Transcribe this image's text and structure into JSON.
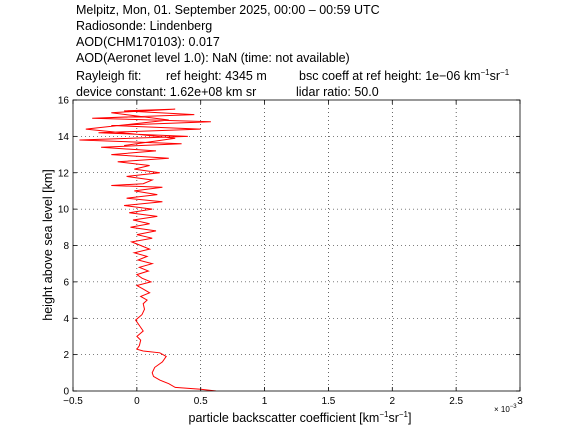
{
  "header": {
    "line1": "Melpitz, Mon, 01. September 2025, 00:00 – 00:59 UTC",
    "line2": "Radiosonde: Lindenberg",
    "line3": "AOD(CHM170103): 0.017",
    "line4": "AOD(Aeronet level 1.0): NaN   (time: not available)",
    "line5a": "Rayleigh fit:",
    "line5b": "ref height: 4345 m",
    "line5c_pre": "bsc coeff at ref height: 1e−06 km",
    "line5c_exp1": "−1",
    "line5c_mid": "sr",
    "line5c_exp2": "−1",
    "line6a": "device constant: 1.62e+08 km sr",
    "line6b": "lidar ratio: 50.0"
  },
  "chart_data": {
    "type": "line",
    "xlabel_pre": "particle backscatter coefficient [km",
    "xlabel_exp1": "−1",
    "xlabel_mid": "sr",
    "xlabel_exp2": "−1",
    "xlabel_post": "]",
    "ylabel": "height above sea level [km]",
    "x_multiplier": "× 10",
    "x_multiplier_exp": "−3",
    "xlim": [
      -0.5,
      3
    ],
    "ylim": [
      0,
      16
    ],
    "xticks": [
      -0.5,
      0,
      0.5,
      1,
      1.5,
      2,
      2.5,
      3
    ],
    "xtick_labels": [
      "−0.5",
      "0",
      "0.5",
      "1",
      "1.5",
      "2",
      "2.5",
      "3"
    ],
    "yticks": [
      0,
      2,
      4,
      6,
      8,
      10,
      12,
      14,
      16
    ],
    "ytick_labels": [
      "0",
      "2",
      "4",
      "6",
      "8",
      "10",
      "12",
      "14",
      "16"
    ],
    "grid": true,
    "series": [
      {
        "color": "#ff0000",
        "points": [
          [
            0.62,
            0.0
          ],
          [
            0.5,
            0.1
          ],
          [
            0.3,
            0.2
          ],
          [
            0.25,
            0.4
          ],
          [
            0.18,
            0.6
          ],
          [
            0.13,
            0.8
          ],
          [
            0.12,
            1.0
          ],
          [
            0.14,
            1.3
          ],
          [
            0.2,
            1.6
          ],
          [
            0.23,
            1.9
          ],
          [
            0.18,
            2.1
          ],
          [
            0.05,
            2.2
          ],
          [
            0.0,
            2.3
          ],
          [
            0.02,
            2.5
          ],
          [
            0.03,
            2.8
          ],
          [
            0.0,
            3.0
          ],
          [
            0.05,
            3.3
          ],
          [
            0.02,
            3.6
          ],
          [
            -0.01,
            3.9
          ],
          [
            0.04,
            4.2
          ],
          [
            0.06,
            4.5
          ],
          [
            0.05,
            4.8
          ],
          [
            0.08,
            5.0
          ],
          [
            0.03,
            5.2
          ],
          [
            0.1,
            5.4
          ],
          [
            0.05,
            5.6
          ],
          [
            0.0,
            5.8
          ],
          [
            0.11,
            6.0
          ],
          [
            0.04,
            6.2
          ],
          [
            0.0,
            6.4
          ],
          [
            0.09,
            6.6
          ],
          [
            0.02,
            6.8
          ],
          [
            0.12,
            7.0
          ],
          [
            0.01,
            7.2
          ],
          [
            0.08,
            7.4
          ],
          [
            -0.02,
            7.6
          ],
          [
            0.1,
            7.8
          ],
          [
            0.03,
            8.0
          ],
          [
            -0.04,
            8.2
          ],
          [
            0.12,
            8.4
          ],
          [
            0.0,
            8.6
          ],
          [
            0.15,
            8.8
          ],
          [
            -0.05,
            9.0
          ],
          [
            0.1,
            9.2
          ],
          [
            -0.03,
            9.4
          ],
          [
            0.16,
            9.6
          ],
          [
            -0.06,
            9.8
          ],
          [
            0.12,
            10.0
          ],
          [
            -0.1,
            10.2
          ],
          [
            0.2,
            10.4
          ],
          [
            -0.08,
            10.6
          ],
          [
            0.16,
            10.8
          ],
          [
            -0.02,
            11.0
          ],
          [
            0.2,
            11.2
          ],
          [
            -0.2,
            11.3
          ],
          [
            0.05,
            11.4
          ],
          [
            0.12,
            11.6
          ],
          [
            -0.08,
            11.8
          ],
          [
            0.18,
            12.0
          ],
          [
            -0.02,
            12.2
          ],
          [
            0.1,
            12.4
          ],
          [
            -0.15,
            12.6
          ],
          [
            0.25,
            12.8
          ],
          [
            -0.2,
            13.0
          ],
          [
            0.15,
            13.2
          ],
          [
            -0.28,
            13.4
          ],
          [
            0.35,
            13.6
          ],
          [
            -0.45,
            13.8
          ],
          [
            0.4,
            14.0
          ],
          [
            -0.3,
            14.2
          ],
          [
            0.5,
            14.4
          ],
          [
            -0.2,
            14.6
          ],
          [
            0.58,
            14.8
          ],
          [
            -0.35,
            15.0
          ],
          [
            0.45,
            15.2
          ],
          [
            -0.1,
            15.4
          ],
          [
            0.3,
            15.5
          ],
          [
            -0.2,
            15.3
          ],
          [
            0.25,
            14.9
          ],
          [
            -0.4,
            14.4
          ],
          [
            0.3,
            13.9
          ],
          [
            -0.1,
            13.5
          ]
        ]
      }
    ]
  }
}
